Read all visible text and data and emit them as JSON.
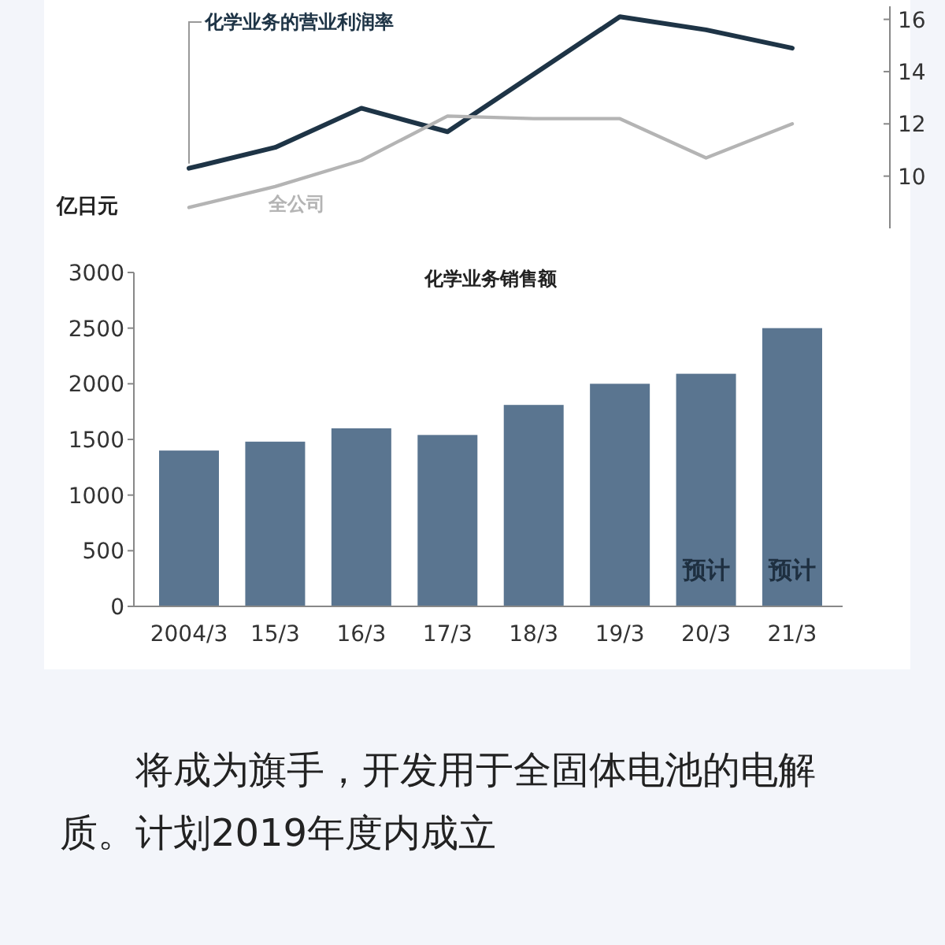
{
  "chart_data": [
    {
      "type": "line",
      "categories": [
        null,
        null,
        null,
        null,
        null,
        null,
        null,
        null
      ],
      "tick_labels": "y",
      "ylim": [
        8,
        16.5
      ],
      "yticks": [
        10,
        12,
        14,
        16
      ],
      "series": [
        {
          "name": "化学业务的营业利润率",
          "color": "#1e3446",
          "values": [
            10.3,
            11.1,
            12.6,
            11.7,
            13.9,
            16.1,
            15.6,
            14.9
          ]
        },
        {
          "name": "全公司",
          "color": "#b4b4b4",
          "values": [
            8.8,
            9.6,
            10.6,
            12.3,
            12.2,
            12.2,
            10.7,
            12.0
          ]
        }
      ]
    },
    {
      "type": "bar",
      "title": "化学业务销售额",
      "ylabel": "亿日元",
      "categories": [
        "2004/3",
        "15/3",
        "16/3",
        "17/3",
        "18/3",
        "19/3",
        "20/3",
        "21/3"
      ],
      "color": "#5a7590",
      "values": [
        1400,
        1480,
        1600,
        1540,
        1810,
        2000,
        2090,
        2500
      ],
      "ylim": [
        0,
        3000
      ],
      "yticks": [
        0,
        500,
        1000,
        1500,
        2000,
        2500,
        3000
      ],
      "annotations": [
        "预计",
        "预计",
        "将成为旗手，开发用于全固体电池的电解质。计划2019年度内成立"
      ]
    }
  ]
}
